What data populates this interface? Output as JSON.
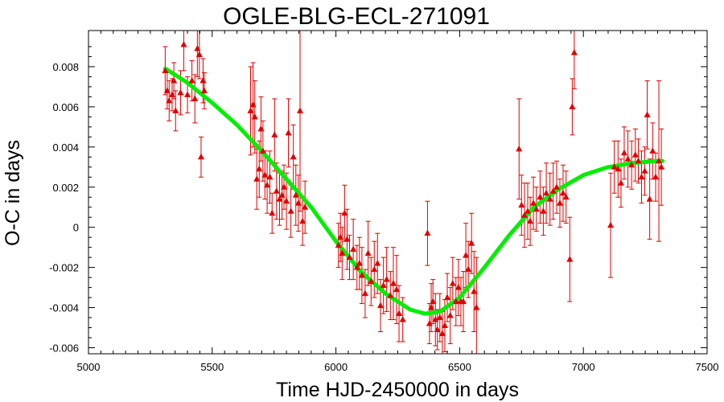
{
  "chart_data": {
    "type": "scatter",
    "title": "OGLE-BLG-ECL-271091",
    "xlabel": "Time HJD-2450000 in days",
    "ylabel": "O-C in days",
    "xlim": [
      5000,
      7500
    ],
    "ylim": [
      -0.0063,
      0.0098
    ],
    "xticks": [
      5000,
      5500,
      6000,
      6500,
      7000,
      7500
    ],
    "xtick_labels": [
      "5000",
      "5500",
      "6000",
      "6500",
      "7000",
      "7500"
    ],
    "yticks": [
      -0.006,
      -0.004,
      -0.002,
      0,
      0.002,
      0.004,
      0.006,
      0.008
    ],
    "ytick_labels": [
      "-0.006",
      "-0.004",
      "-0.002",
      "0",
      "0.002",
      "0.004",
      "0.006",
      "0.008"
    ],
    "grid": false,
    "colors": {
      "points": "#e00000",
      "fit": "#00ee00",
      "axes": "#000000"
    },
    "series": [
      {
        "type": "scatter",
        "marker": "triangle",
        "x": [
          5310,
          5318,
          5326,
          5338,
          5345,
          5352,
          5372,
          5385,
          5400,
          5418,
          5430,
          5440,
          5448,
          5455,
          5463,
          5468,
          5655,
          5665,
          5672,
          5680,
          5690,
          5697,
          5705,
          5713,
          5722,
          5733,
          5742,
          5752,
          5760,
          5772,
          5782,
          5790,
          5800,
          5808,
          5818,
          5828,
          5838,
          5848,
          5855,
          5865,
          5875,
          6010,
          6018,
          6025,
          6035,
          6045,
          6055,
          6070,
          6085,
          6095,
          6105,
          6118,
          6130,
          6142,
          6155,
          6168,
          6180,
          6192,
          6205,
          6220,
          6232,
          6245,
          6255,
          6270,
          6370,
          6378,
          6385,
          6392,
          6402,
          6410,
          6420,
          6430,
          6440,
          6450,
          6462,
          6472,
          6485,
          6495,
          6505,
          6515,
          6525,
          6535,
          6548,
          6558,
          6568,
          6740,
          6750,
          6762,
          6775,
          6785,
          6798,
          6810,
          6825,
          6838,
          6850,
          6865,
          6878,
          6892,
          6905,
          6918,
          6930,
          6945,
          6955,
          6963,
          7110,
          7125,
          7140,
          7152,
          7165,
          7180,
          7195,
          7210,
          7222,
          7235,
          7248,
          7258,
          7268,
          7280,
          7292,
          7305,
          7315
        ],
        "y": [
          0.0078,
          0.0068,
          0.0063,
          0.0066,
          0.0073,
          0.0058,
          0.0067,
          0.0091,
          0.0066,
          0.0073,
          0.0064,
          0.0089,
          0.0086,
          0.0035,
          0.0073,
          0.0068,
          0.0058,
          0.0061,
          0.0055,
          0.0024,
          0.0029,
          0.0049,
          0.0038,
          0.0026,
          0.0021,
          0.0025,
          0.0007,
          0.0046,
          0.0018,
          0.0014,
          0.0016,
          0.002,
          0.0013,
          0.0047,
          0.0008,
          0.0035,
          0.0016,
          0.0012,
          0.0058,
          0.0003,
          0.001,
          -0.0009,
          -0.0005,
          -0.0013,
          0.0007,
          -0.0006,
          -0.0015,
          -0.0011,
          -0.002,
          -0.0018,
          -0.0024,
          -0.0033,
          -0.0013,
          -0.0027,
          -0.0021,
          -0.0018,
          -0.0039,
          -0.0029,
          -0.0026,
          -0.0034,
          -0.0028,
          -0.0031,
          -0.0043,
          -0.0046,
          -0.0003,
          -0.0048,
          -0.004,
          -0.0037,
          -0.0046,
          -0.0051,
          -0.0045,
          -0.0053,
          -0.0049,
          -0.0035,
          -0.0044,
          -0.0028,
          -0.0037,
          -0.003,
          -0.0037,
          -0.0037,
          -0.0014,
          -0.0021,
          -0.0008,
          -0.0032,
          -0.004,
          0.0039,
          0.0011,
          0.0006,
          0.0008,
          0.0003,
          0.0012,
          0.0009,
          0.0015,
          0.0008,
          0.0017,
          0.0014,
          0.0018,
          0.002,
          0.0012,
          0.0017,
          0.0015,
          -0.0016,
          0.006,
          0.0087,
          0.0001,
          0.003,
          0.0029,
          0.0022,
          0.0037,
          0.0034,
          0.0031,
          0.0036,
          0.0033,
          0.0025,
          0.0028,
          0.0056,
          0.0014,
          0.0038,
          0.0025,
          0.0033,
          0.003
        ],
        "err": [
          0.0012,
          0.0009,
          0.001,
          0.0008,
          0.0009,
          0.001,
          0.0011,
          0.0013,
          0.0009,
          0.001,
          0.0012,
          0.0014,
          0.0012,
          0.001,
          0.0011,
          0.0009,
          0.0022,
          0.0021,
          0.0018,
          0.0015,
          0.0014,
          0.0016,
          0.0015,
          0.0012,
          0.0014,
          0.0013,
          0.001,
          0.0018,
          0.0014,
          0.0013,
          0.0012,
          0.0011,
          0.0014,
          0.0017,
          0.0013,
          0.0016,
          0.0015,
          0.0014,
          0.005,
          0.0012,
          0.0013,
          0.0011,
          0.0012,
          0.0013,
          0.0014,
          0.0015,
          0.0011,
          0.0015,
          0.0011,
          0.0013,
          0.0014,
          0.0012,
          0.0016,
          0.0012,
          0.0014,
          0.0015,
          0.0013,
          0.0014,
          0.0016,
          0.0012,
          0.0018,
          0.0017,
          0.0014,
          0.0011,
          0.0016,
          0.001,
          0.0012,
          0.0011,
          0.0013,
          0.001,
          0.0012,
          0.0011,
          0.0013,
          0.0012,
          0.0014,
          0.0013,
          0.0012,
          0.0014,
          0.0012,
          0.0015,
          0.0016,
          0.0014,
          0.0015,
          0.002,
          0.0025,
          0.0025,
          0.0015,
          0.0016,
          0.0014,
          0.0012,
          0.0013,
          0.0011,
          0.0013,
          0.0012,
          0.0015,
          0.0013,
          0.0014,
          0.0013,
          0.0012,
          0.0014,
          0.0013,
          0.0021,
          0.0014,
          0.0018,
          0.0026,
          0.0013,
          0.0014,
          0.0012,
          0.0013,
          0.0014,
          0.0012,
          0.0013,
          0.0011,
          0.0013,
          0.0012,
          0.0017,
          0.002,
          0.0014,
          0.0012,
          0.004,
          0.0019
        ]
      },
      {
        "type": "line",
        "x": [
          5310,
          5400,
          5500,
          5600,
          5700,
          5800,
          5900,
          6000,
          6100,
          6200,
          6300,
          6360,
          6420,
          6500,
          6600,
          6700,
          6800,
          6900,
          7000,
          7100,
          7200,
          7300,
          7320
        ],
        "y": [
          0.0079,
          0.0072,
          0.0062,
          0.0051,
          0.0038,
          0.0024,
          0.001,
          -0.0007,
          -0.0022,
          -0.0033,
          -0.0041,
          -0.0043,
          -0.0042,
          -0.0035,
          -0.002,
          -0.0004,
          0.001,
          0.0019,
          0.0026,
          0.003,
          0.0032,
          0.0033,
          0.0033
        ]
      }
    ]
  }
}
